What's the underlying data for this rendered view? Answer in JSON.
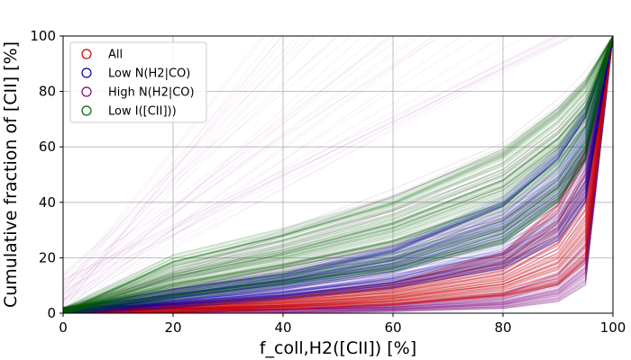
{
  "chart_data": {
    "type": "line",
    "title": "",
    "xlabel": "f_coll,H2([CII]) [%]",
    "ylabel": "Cumulative fraction of [CII] [%]",
    "xlim": [
      0,
      100
    ],
    "ylim": [
      0,
      100
    ],
    "xticks": [
      0,
      20,
      40,
      60,
      80,
      100
    ],
    "yticks": [
      0,
      20,
      40,
      60,
      80,
      100
    ],
    "grid": true,
    "legend_position": "top-left",
    "legend_marker": "open-circle",
    "description_of_curves": "Hundreds of overlapping semi-transparent cumulative curves per group; each curve rises from (0, ~0) to (100, 100). Listed series give the approximate envelope (lower, median, upper) of each group's curve bundle.",
    "series": [
      {
        "name": "All",
        "color": "#d00000",
        "x": [
          0,
          20,
          40,
          60,
          80,
          90,
          95,
          100
        ],
        "lower": [
          0,
          0.5,
          1.5,
          3,
          6,
          10,
          18,
          100
        ],
        "median": [
          0,
          1.5,
          3.5,
          7,
          14,
          25,
          40,
          100
        ],
        "upper": [
          0,
          3,
          6,
          11,
          22,
          40,
          60,
          100
        ]
      },
      {
        "name": "Low N(H2|CO)",
        "color": "#0000b0",
        "x": [
          0,
          20,
          40,
          60,
          80,
          90,
          95,
          100
        ],
        "lower": [
          0,
          2,
          5,
          9,
          16,
          26,
          40,
          100
        ],
        "median": [
          0,
          5,
          10,
          17,
          30,
          45,
          60,
          100
        ],
        "upper": [
          0,
          8,
          14,
          24,
          42,
          60,
          75,
          100
        ]
      },
      {
        "name": "High N(H2|CO)",
        "color": "#800080",
        "x": [
          0,
          20,
          40,
          60,
          80,
          90,
          95,
          100
        ],
        "lower": [
          0,
          0,
          0,
          0.5,
          1.5,
          4,
          10,
          100
        ],
        "median": [
          0,
          0.5,
          1.5,
          3,
          7,
          14,
          25,
          100
        ],
        "upper": [
          0,
          15,
          30,
          45,
          62,
          78,
          88,
          100
        ]
      },
      {
        "name": "Low I([CII]))",
        "color": "#006400",
        "x": [
          0,
          20,
          40,
          60,
          80,
          90,
          95,
          100
        ],
        "lower": [
          0,
          5,
          10,
          15,
          25,
          40,
          55,
          100
        ],
        "median": [
          0,
          12,
          20,
          30,
          45,
          60,
          72,
          100
        ],
        "upper": [
          0,
          20,
          30,
          42,
          60,
          75,
          85,
          100
        ]
      }
    ]
  }
}
